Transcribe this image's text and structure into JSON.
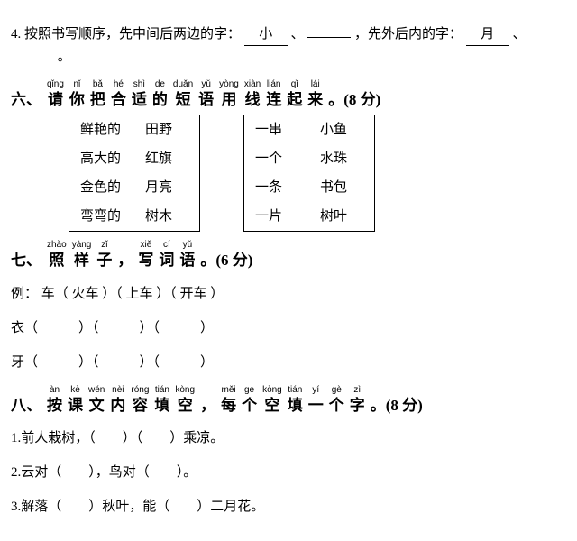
{
  "q4": {
    "num": "4.",
    "text1": "按照书写顺序，先中间后两边的字：",
    "fill1": "小",
    "sep": "、",
    "text2": "，先外后内的字：",
    "fill2": "月",
    "period": "。"
  },
  "sec6": {
    "num": "六、",
    "pinyin": [
      "qǐng",
      "nǐ",
      "bǎ",
      "hé",
      "shì",
      "de",
      "duǎn",
      "yǔ",
      "yòng",
      "xiàn",
      "lián",
      "qǐ",
      "lái"
    ],
    "hanzi": [
      "请",
      "你",
      "把",
      "合",
      "适",
      "的",
      "短",
      "语",
      "用",
      "线",
      "连",
      "起",
      "来"
    ],
    "tail": "。(8 分)",
    "box1": {
      "left": [
        "鲜艳的",
        "高大的",
        "金色的",
        "弯弯的"
      ],
      "right": [
        "田野",
        "红旗",
        "月亮",
        "树木"
      ]
    },
    "box2": {
      "left": [
        "一串",
        "一个",
        "一条",
        "一片"
      ],
      "right": [
        "小鱼",
        "水珠",
        "书包",
        "树叶"
      ]
    }
  },
  "sec7": {
    "num": "七、",
    "pinyin": [
      "zhào",
      "yàng",
      "zǐ",
      "",
      "xiě",
      "cí",
      "yǔ"
    ],
    "hanzi": [
      "照",
      "样",
      "子",
      "，",
      "写",
      "词",
      "语"
    ],
    "tail": "。(6 分)",
    "example_label": "例：",
    "example": "车（ 火车 ）（ 上车 ）（ 开车 ）",
    "rows": [
      "衣（　　　）（　　　）（　　　）",
      "牙（　　　）（　　　）（　　　）"
    ]
  },
  "sec8": {
    "num": "八、",
    "pinyin": [
      "àn",
      "kè",
      "wén",
      "nèi",
      "róng",
      "tián",
      "kòng",
      "",
      "měi",
      "ge",
      "kòng",
      "tián",
      "yí",
      "gè",
      "zì"
    ],
    "hanzi": [
      "按",
      "课",
      "文",
      "内",
      "容",
      "填",
      "空",
      "，",
      "每",
      "个",
      "空",
      "填",
      "一",
      "个",
      "字"
    ],
    "tail": "。(8 分)",
    "items": [
      {
        "num": "1.",
        "text": "前人栽树，（　　）（　　）乘凉。"
      },
      {
        "num": "2.",
        "text": "云对（　　），鸟对（　　）。"
      },
      {
        "num": "3.",
        "text": "解落（　　）秋叶，能（　　）二月花。"
      }
    ]
  }
}
